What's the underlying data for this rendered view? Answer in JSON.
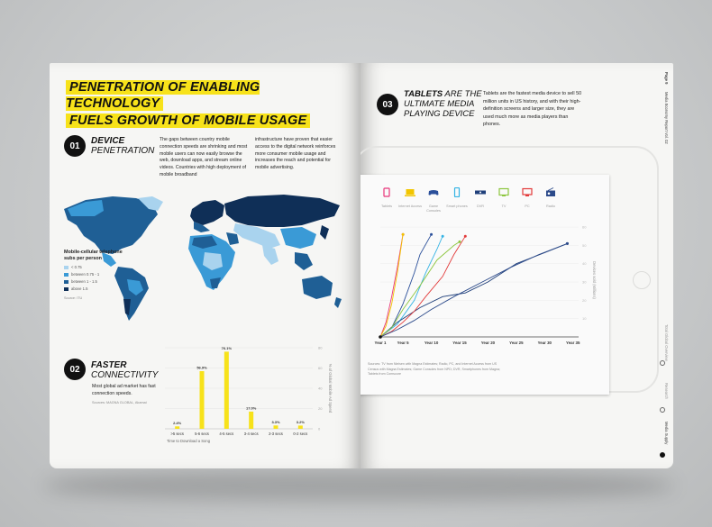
{
  "left_page": {
    "headline_line1": "PENETRATION OF ENABLING TECHNOLOGY",
    "headline_line2": "FUELS GROWTH OF MOBILE USAGE",
    "section1": {
      "number": "01",
      "title_bold": "DEVICE",
      "title_rest": "PENETRATION",
      "text_col1": "The gaps between country mobile connection speeds are shrinking and most mobile users can now easily browse the web, download apps, and stream online videos.  Countries with high deployment of mobile broadband",
      "text_col2": "infrastructure have proven that easier access to the digital network reinforces more consumer mobile usage and increases the reach and potential for mobile advertising."
    },
    "map": {
      "legend_title": "Mobile-cellular telephone subs per person",
      "legend": [
        {
          "label": "< 0.75",
          "color": "#a9d3ee"
        },
        {
          "label": "between 0.75 - 1",
          "color": "#3a9ad6"
        },
        {
          "label": "between 1 - 1.5",
          "color": "#1f5f95"
        },
        {
          "label": "above 1.5",
          "color": "#0f2f57"
        }
      ],
      "source": "Source: ITU"
    },
    "section2": {
      "number": "02",
      "title_bold": "FASTER",
      "title_rest": "CONNECTIVITY",
      "text": "Most global ad market has fast connection speeds.",
      "source": "Sources: MAGNA GLOBAL, Akamai"
    }
  },
  "right_page": {
    "section3": {
      "number": "03",
      "title_bold": "TABLETS",
      "title_rest1": "ARE THE",
      "title_rest2": "ULTIMATE MEDIA",
      "title_rest3": "PLAYING DEVICE",
      "text": "Tablets are the fastest media device to sell 50 million units in US history, and with their high-definition screens and larger size, they are used much more as media players than phones."
    },
    "device_icons": [
      {
        "label": "Tablets",
        "icon": "tablet-icon",
        "color": "#e8357a"
      },
      {
        "label": "Internet Access",
        "icon": "laptop-icon",
        "color": "#f2c500"
      },
      {
        "label": "Game Consoles",
        "icon": "gamepad-icon",
        "color": "#2a4f9a"
      },
      {
        "label": "Smart phones",
        "icon": "smartphone-icon",
        "color": "#34b3e4"
      },
      {
        "label": "DVR",
        "icon": "dvr-icon",
        "color": "#1f3f7a"
      },
      {
        "label": "TV",
        "icon": "tv-icon",
        "color": "#8cc63e"
      },
      {
        "label": "PC",
        "icon": "pc-icon",
        "color": "#e23a3a"
      },
      {
        "label": "Radio",
        "icon": "radio-icon",
        "color": "#2c4a8a"
      }
    ],
    "chart_source": "Sources: TV from Nielsen with Magna Estimates; Radio, PC, and Internet Access from US Census with Magna Estimates; Game Consoles from NPD; DVR, Smartphones from Magna; Tablets from Comscore",
    "side_texts": [
      "Page 9",
      "Media Economy Report Vol. 02",
      "Total Global Overview",
      "Research",
      "Media Supply"
    ]
  },
  "chart_data": [
    {
      "type": "bar",
      "categories": [
        ">5 secs",
        "5-6 secs",
        "4-5 secs",
        "3-4 secs",
        "2-3 secs",
        "0-2 secs"
      ],
      "values": [
        2.4,
        56.9,
        76.1,
        17.0,
        3.3,
        3.2
      ],
      "data_labels": [
        "2.4%",
        "56.9%",
        "76.1%",
        "17.0%",
        "3.3%",
        "3.2%"
      ],
      "xlabel": "Time to Download a Song",
      "ylabel": "% of Global Mobile Ad Spend",
      "ylim": [
        0,
        80
      ],
      "yticks": [
        0,
        20,
        40,
        60,
        80
      ],
      "color": "#f7e21a"
    },
    {
      "type": "line",
      "xlabel": "",
      "ylabel": "Devices sold (Millions)",
      "x_ticks": [
        "Year 1",
        "Year 5",
        "Year 10",
        "Year 15",
        "Year 20",
        "Year 25",
        "Year 30",
        "Year 35"
      ],
      "x_tick_values": [
        1,
        5,
        10,
        15,
        20,
        25,
        30,
        35
      ],
      "yticks": [
        10,
        20,
        30,
        40,
        50,
        60
      ],
      "ylim": [
        0,
        62
      ],
      "xlim": [
        1,
        36
      ],
      "series": [
        {
          "label": "Tablets",
          "color": "#e8357a",
          "points": [
            [
              1,
              0
            ],
            [
              2,
              8
            ],
            [
              3,
              22
            ],
            [
              4,
              38
            ],
            [
              5,
              56
            ]
          ]
        },
        {
          "label": "Internet Access",
          "color": "#f2c500",
          "points": [
            [
              1,
              0
            ],
            [
              2,
              6
            ],
            [
              3,
              18
            ],
            [
              4,
              35
            ],
            [
              5,
              56
            ]
          ]
        },
        {
          "label": "Game Consoles",
          "color": "#2a4f9a",
          "points": [
            [
              1,
              0
            ],
            [
              3,
              5
            ],
            [
              5,
              18
            ],
            [
              7,
              35
            ],
            [
              8,
              45
            ],
            [
              10,
              56
            ]
          ]
        },
        {
          "label": "Smart phones",
          "color": "#34b3e4",
          "points": [
            [
              1,
              0
            ],
            [
              4,
              7
            ],
            [
              7,
              20
            ],
            [
              9,
              35
            ],
            [
              11,
              48
            ],
            [
              12,
              55
            ]
          ]
        },
        {
          "label": "DVR",
          "color": "#1f3f7a",
          "points": [
            [
              1,
              0
            ],
            [
              4,
              8
            ],
            [
              8,
              16
            ],
            [
              12,
              22
            ],
            [
              16,
              24
            ],
            [
              20,
              30
            ],
            [
              25,
              40
            ],
            [
              30,
              46
            ],
            [
              34,
              51
            ]
          ]
        },
        {
          "label": "TV",
          "color": "#8cc63e",
          "points": [
            [
              1,
              0
            ],
            [
              3,
              5
            ],
            [
              5,
              15
            ],
            [
              8,
              28
            ],
            [
              11,
              42
            ],
            [
              14,
              50
            ],
            [
              15,
              52
            ]
          ]
        },
        {
          "label": "PC",
          "color": "#e23a3a",
          "points": [
            [
              1,
              0
            ],
            [
              3,
              3
            ],
            [
              5,
              8
            ],
            [
              7,
              14
            ],
            [
              9,
              22
            ],
            [
              12,
              33
            ],
            [
              14,
              45
            ],
            [
              16,
              55
            ]
          ]
        },
        {
          "label": "Radio",
          "color": "#2c4a8a",
          "points": [
            [
              1,
              0
            ],
            [
              4,
              4
            ],
            [
              7,
              9
            ],
            [
              10,
              15
            ],
            [
              14,
              22
            ],
            [
              19,
              30
            ],
            [
              24,
              38
            ],
            [
              29,
              45
            ],
            [
              34,
              51
            ]
          ]
        }
      ]
    }
  ]
}
